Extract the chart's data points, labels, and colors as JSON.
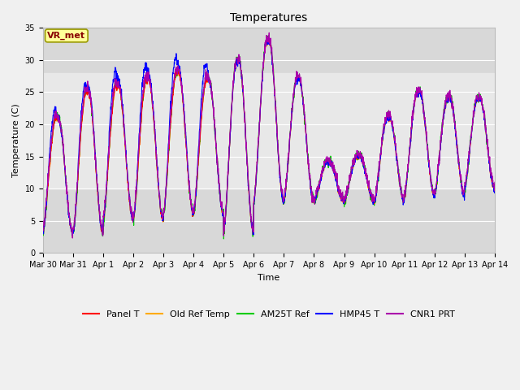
{
  "title": "Temperatures",
  "xlabel": "Time",
  "ylabel": "Temperature (C)",
  "ylim": [
    0,
    35
  ],
  "xlim": [
    0,
    15
  ],
  "background_color": "#f0f0f0",
  "plot_bg_color": "#d8d8d8",
  "shaded_band_color": "#e8e8e8",
  "grid_color": "#ffffff",
  "label_box_text": "VR_met",
  "label_box_color": "#ffff99",
  "label_box_edge": "#999900",
  "label_text_color": "#880000",
  "legend_labels": [
    "Panel T",
    "Old Ref Temp",
    "AM25T Ref",
    "HMP45 T",
    "CNR1 PRT"
  ],
  "line_colors": [
    "#ff0000",
    "#ffaa00",
    "#00cc00",
    "#0000ff",
    "#aa00aa"
  ],
  "tick_labels": [
    "Mar 30",
    "Mar 31",
    "Apr 1",
    "Apr 2",
    "Apr 3",
    "Apr 4",
    "Apr 5",
    "Apr 6",
    "Apr 7",
    "Apr 8",
    "Apr 9",
    "Apr 10",
    "Apr 11",
    "Apr 12",
    "Apr 13",
    "Apr 14"
  ],
  "tick_positions": [
    0,
    1,
    2,
    3,
    4,
    5,
    6,
    7,
    8,
    9,
    10,
    11,
    12,
    13,
    14,
    15
  ],
  "shaded_band": [
    10,
    28
  ],
  "fontsize_title": 10,
  "fontsize_axis": 8,
  "fontsize_ticks": 7,
  "fontsize_legend": 8,
  "daily_peaks": [
    21,
    25,
    26,
    27,
    28,
    27,
    30,
    33,
    27,
    14,
    15,
    21,
    25,
    24,
    24
  ],
  "daily_mins": [
    3,
    3,
    5,
    5,
    6,
    6,
    3,
    8,
    8,
    8,
    8,
    8,
    9,
    9,
    10
  ]
}
